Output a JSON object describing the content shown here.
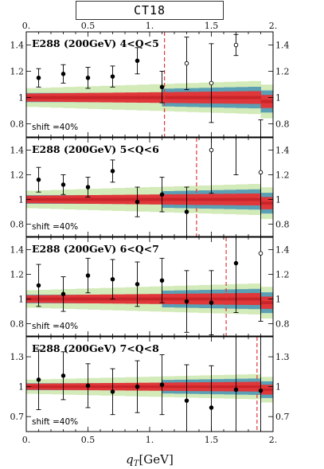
{
  "header": {
    "badge": "CT18"
  },
  "chart_data": {
    "type": "scatter",
    "xlabel_prefix": "q",
    "xlabel_sub": "T",
    "xlabel_suffix": "[GeV]",
    "xlim": [
      0,
      2
    ],
    "x_ticks": [
      "0.",
      "0.5",
      "1.",
      "1.5",
      "2."
    ],
    "colors": {
      "band_outer": "#d3eab9",
      "band_mid": "#5b9fb5",
      "band_inner": "#e0373a",
      "band_core": "#c8252a",
      "cut_line": "#e0373a"
    },
    "panels": [
      {
        "label": "E288 (200GeV) 4<Q<5",
        "shift": "shift =40%",
        "ylim": [
          0.7,
          1.5
        ],
        "y_ticks": [
          {
            "v": 0.8,
            "t": "0.8"
          },
          {
            "v": 1.0,
            "t": "1"
          },
          {
            "v": 1.2,
            "t": "1.2"
          },
          {
            "v": 1.4,
            "t": "1.4"
          }
        ],
        "cut_x": 1.12,
        "points": [
          {
            "x": 0.1,
            "y": 1.15,
            "err": 0.07,
            "filled": true
          },
          {
            "x": 0.3,
            "y": 1.18,
            "err": 0.07,
            "filled": true
          },
          {
            "x": 0.5,
            "y": 1.15,
            "err": 0.08,
            "filled": true
          },
          {
            "x": 0.7,
            "y": 1.16,
            "err": 0.08,
            "filled": true
          },
          {
            "x": 0.9,
            "y": 1.28,
            "err": 0.1,
            "filled": true
          },
          {
            "x": 1.1,
            "y": 1.08,
            "err": 0.12,
            "filled": true
          },
          {
            "x": 1.3,
            "y": 1.26,
            "err": 0.2,
            "filled": false
          },
          {
            "x": 1.5,
            "y": 1.11,
            "err": 0.3,
            "filled": false
          },
          {
            "x": 1.7,
            "y": 1.4,
            "err": 0.08,
            "filled": false
          },
          {
            "x": 1.9,
            "y": 0.6,
            "err": 0.23,
            "filled": false
          }
        ]
      },
      {
        "label": "E288 (200GeV) 5<Q<6",
        "shift": "shift =40%",
        "ylim": [
          0.7,
          1.5
        ],
        "y_ticks": [
          {
            "v": 0.8,
            "t": "0.8"
          },
          {
            "v": 1.0,
            "t": "1"
          },
          {
            "v": 1.2,
            "t": "1.2"
          },
          {
            "v": 1.4,
            "t": "1.4"
          }
        ],
        "cut_x": 1.38,
        "points": [
          {
            "x": 0.1,
            "y": 1.16,
            "err": 0.1,
            "filled": true
          },
          {
            "x": 0.3,
            "y": 1.12,
            "err": 0.08,
            "filled": true
          },
          {
            "x": 0.5,
            "y": 1.1,
            "err": 0.08,
            "filled": true
          },
          {
            "x": 0.7,
            "y": 1.23,
            "err": 0.09,
            "filled": true
          },
          {
            "x": 0.9,
            "y": 0.98,
            "err": 0.12,
            "filled": true
          },
          {
            "x": 1.1,
            "y": 1.04,
            "err": 0.14,
            "filled": true
          },
          {
            "x": 1.3,
            "y": 0.9,
            "err": 0.2,
            "filled": true
          },
          {
            "x": 1.5,
            "y": 1.4,
            "err": 0.35,
            "filled": false
          },
          {
            "x": 1.7,
            "y": 1.6,
            "err": 0.4,
            "filled": false
          },
          {
            "x": 1.9,
            "y": 1.22,
            "err": 0.52,
            "filled": false
          }
        ]
      },
      {
        "label": "E288 (200GeV) 6<Q<7",
        "shift": "shift =40%",
        "ylim": [
          0.7,
          1.5
        ],
        "y_ticks": [
          {
            "v": 0.8,
            "t": "0.8"
          },
          {
            "v": 1.0,
            "t": "1"
          },
          {
            "v": 1.2,
            "t": "1.2"
          },
          {
            "v": 1.4,
            "t": "1.4"
          }
        ],
        "cut_x": 1.62,
        "points": [
          {
            "x": 0.1,
            "y": 1.11,
            "err": 0.17,
            "filled": true
          },
          {
            "x": 0.3,
            "y": 1.04,
            "err": 0.14,
            "filled": true
          },
          {
            "x": 0.5,
            "y": 1.19,
            "err": 0.14,
            "filled": true
          },
          {
            "x": 0.7,
            "y": 1.16,
            "err": 0.16,
            "filled": true
          },
          {
            "x": 0.9,
            "y": 1.12,
            "err": 0.18,
            "filled": true
          },
          {
            "x": 1.1,
            "y": 1.15,
            "err": 0.18,
            "filled": true
          },
          {
            "x": 1.3,
            "y": 0.98,
            "err": 0.25,
            "filled": true
          },
          {
            "x": 1.5,
            "y": 0.97,
            "err": 0.26,
            "filled": true
          },
          {
            "x": 1.7,
            "y": 1.29,
            "err": 0.4,
            "filled": true
          },
          {
            "x": 1.9,
            "y": 1.37,
            "err": 0.55,
            "filled": false
          }
        ]
      },
      {
        "label": "E288 (200GeV) 7<Q<8",
        "shift": "shift =40%",
        "ylim": [
          0.55,
          1.5
        ],
        "y_ticks": [
          {
            "v": 0.7,
            "t": "0.7"
          },
          {
            "v": 1.0,
            "t": "1"
          },
          {
            "v": 1.3,
            "t": "1.3"
          }
        ],
        "cut_x": 1.87,
        "points": [
          {
            "x": 0.1,
            "y": 1.07,
            "err": 0.3,
            "filled": true
          },
          {
            "x": 0.3,
            "y": 1.11,
            "err": 0.24,
            "filled": true
          },
          {
            "x": 0.5,
            "y": 1.01,
            "err": 0.22,
            "filled": true
          },
          {
            "x": 0.7,
            "y": 0.95,
            "err": 0.23,
            "filled": true
          },
          {
            "x": 0.9,
            "y": 1.0,
            "err": 0.26,
            "filled": true
          },
          {
            "x": 1.1,
            "y": 1.02,
            "err": 0.3,
            "filled": true
          },
          {
            "x": 1.3,
            "y": 0.86,
            "err": 0.36,
            "filled": true
          },
          {
            "x": 1.5,
            "y": 0.79,
            "err": 0.42,
            "filled": true
          },
          {
            "x": 1.7,
            "y": 0.97,
            "err": 0.55,
            "filled": true
          },
          {
            "x": 1.9,
            "y": 0.96,
            "err": 0.8,
            "filled": true
          }
        ]
      }
    ]
  }
}
